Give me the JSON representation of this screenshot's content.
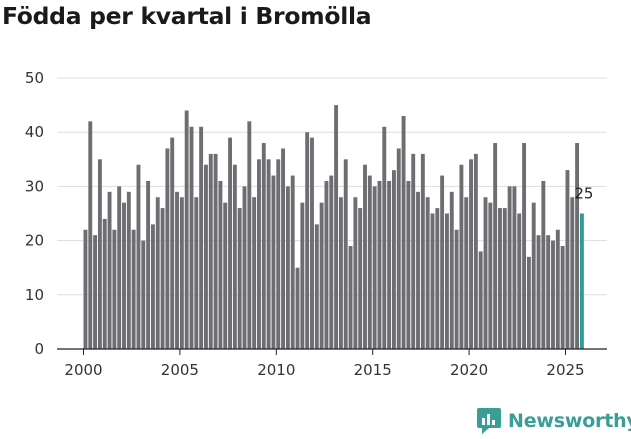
{
  "title": "Födda per kvartal i Bromölla",
  "brand": {
    "name": "Newsworthy",
    "logo_icon": "newsworthy-logo-icon",
    "color": "#3a9e97"
  },
  "colors": {
    "bar": "#6e6e72",
    "highlight": "#2a9d99",
    "grid": "#dddddd",
    "axis": "#222222"
  },
  "chart_data": {
    "type": "bar",
    "title": "Födda per kvartal i Bromölla",
    "xlabel": "",
    "ylabel": "",
    "ylim": [
      0,
      50
    ],
    "yticks": [
      0,
      10,
      20,
      30,
      40,
      50
    ],
    "xticks": [
      "2000",
      "2005",
      "2010",
      "2015",
      "2020",
      "2025"
    ],
    "x_start": {
      "year": 2000,
      "quarter": 1
    },
    "categories": [
      "2000 K1",
      "2000 K2",
      "2000 K3",
      "2000 K4",
      "2001 K1",
      "2001 K2",
      "2001 K3",
      "2001 K4",
      "2002 K1",
      "2002 K2",
      "2002 K3",
      "2002 K4",
      "2003 K1",
      "2003 K2",
      "2003 K3",
      "2003 K4",
      "2004 K1",
      "2004 K2",
      "2004 K3",
      "2004 K4",
      "2005 K1",
      "2005 K2",
      "2005 K3",
      "2005 K4",
      "2006 K1",
      "2006 K2",
      "2006 K3",
      "2006 K4",
      "2007 K1",
      "2007 K2",
      "2007 K3",
      "2007 K4",
      "2008 K1",
      "2008 K2",
      "2008 K3",
      "2008 K4",
      "2009 K1",
      "2009 K2",
      "2009 K3",
      "2009 K4",
      "2010 K1",
      "2010 K2",
      "2010 K3",
      "2010 K4",
      "2011 K1",
      "2011 K2",
      "2011 K3",
      "2011 K4",
      "2012 K1",
      "2012 K2",
      "2012 K3",
      "2012 K4",
      "2013 K1",
      "2013 K2",
      "2013 K3",
      "2013 K4",
      "2014 K1",
      "2014 K2",
      "2014 K3",
      "2014 K4",
      "2015 K1",
      "2015 K2",
      "2015 K3",
      "2015 K4",
      "2016 K1",
      "2016 K2",
      "2016 K3",
      "2016 K4",
      "2017 K1",
      "2017 K2",
      "2017 K3",
      "2017 K4",
      "2018 K1",
      "2018 K2",
      "2018 K3",
      "2018 K4",
      "2019 K1",
      "2019 K2",
      "2019 K3",
      "2019 K4",
      "2020 K1",
      "2020 K2",
      "2020 K3",
      "2020 K4",
      "2021 K1",
      "2021 K2",
      "2021 K3",
      "2021 K4",
      "2022 K1",
      "2022 K2",
      "2022 K3",
      "2022 K4",
      "2023 K1",
      "2023 K2",
      "2023 K3",
      "2023 K4",
      "2024 K1",
      "2024 K2",
      "2024 K3",
      "2024 K4",
      "2025 K1",
      "2025 K2",
      "2025 K3",
      "2025 K4"
    ],
    "values": [
      22,
      42,
      21,
      35,
      24,
      29,
      22,
      30,
      27,
      29,
      22,
      34,
      20,
      31,
      23,
      28,
      26,
      37,
      39,
      29,
      28,
      44,
      41,
      28,
      41,
      34,
      36,
      36,
      31,
      27,
      39,
      34,
      26,
      30,
      42,
      28,
      35,
      38,
      35,
      32,
      35,
      37,
      30,
      32,
      15,
      27,
      40,
      39,
      23,
      27,
      31,
      32,
      45,
      28,
      35,
      19,
      28,
      26,
      34,
      32,
      30,
      31,
      41,
      31,
      33,
      37,
      43,
      31,
      36,
      29,
      36,
      28,
      25,
      26,
      32,
      25,
      29,
      22,
      34,
      28,
      35,
      36,
      18,
      28,
      27,
      38,
      26,
      26,
      30,
      30,
      25,
      38,
      17,
      27,
      21,
      31,
      21,
      20,
      22,
      19,
      33,
      28,
      38,
      25
    ],
    "highlight_index": 103,
    "last_value_label": "25"
  }
}
